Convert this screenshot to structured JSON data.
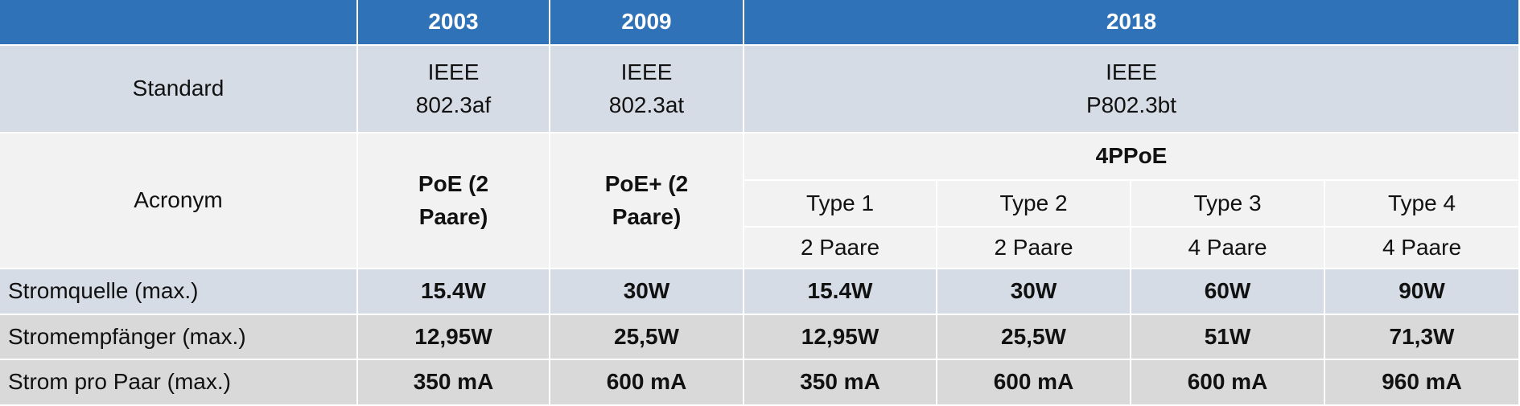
{
  "header": {
    "years": [
      "2003",
      "2009",
      "2018"
    ]
  },
  "standard": {
    "label": "Standard",
    "values": [
      "IEEE 802.3af",
      "IEEE 802.3at",
      "IEEE P802.3bt"
    ]
  },
  "acronym": {
    "label": "Acronym",
    "values": [
      "PoE (2 Paare)",
      "PoE+ (2 Paare)"
    ],
    "group": "4PPoE",
    "types": [
      "Type 1",
      "Type 2",
      "Type 3",
      "Type 4"
    ],
    "pairs": [
      "2 Paare",
      "2 Paare",
      "4 Paare",
      "4 Paare"
    ]
  },
  "table": {
    "rows": [
      {
        "label": "Stromquelle (max.)",
        "values": [
          "15.4W",
          "30W",
          "15.4W",
          "30W",
          "60W",
          "90W"
        ]
      },
      {
        "label": "Stromempfänger (max.)",
        "values": [
          "12,95W",
          "25,5W",
          "12,95W",
          "25,5W",
          "51W",
          "71,3W"
        ]
      },
      {
        "label": "Strom pro Paar (max.)",
        "values": [
          "350 mA",
          "600 mA",
          "350 mA",
          "600 mA",
          "600 mA",
          "960 mA"
        ]
      }
    ]
  }
}
